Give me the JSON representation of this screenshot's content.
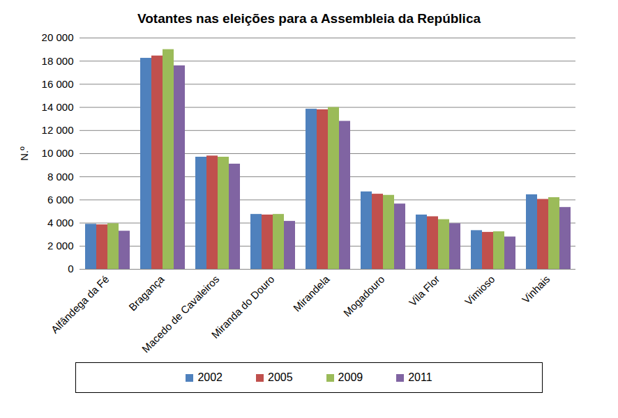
{
  "chart_data": {
    "type": "bar",
    "title": "Votantes nas eleições para a Assembleia da República",
    "y_label": "N.º",
    "categories": [
      "Alfândega da Fé",
      "Bragança",
      "Macedo de Cavaleiros",
      "Miranda do Douro",
      "Mirandela",
      "Mogadouro",
      "Vila Flor",
      "Vimioso",
      "Vinhais"
    ],
    "series": [
      {
        "name": "2002",
        "color": "#4f81bd",
        "values": [
          3900,
          18250,
          9700,
          4750,
          13850,
          6700,
          4700,
          3350,
          6450
        ]
      },
      {
        "name": "2005",
        "color": "#c0504d",
        "values": [
          3850,
          18450,
          9800,
          4700,
          13800,
          6500,
          4550,
          3200,
          6050
        ]
      },
      {
        "name": "2009",
        "color": "#9bbb59",
        "values": [
          3950,
          19000,
          9700,
          4750,
          14000,
          6400,
          4300,
          3250,
          6200
        ]
      },
      {
        "name": "2011",
        "color": "#8064a2",
        "values": [
          3300,
          17600,
          9100,
          4150,
          12800,
          5650,
          3950,
          2800,
          5350
        ]
      }
    ],
    "ylim": [
      0,
      20000
    ],
    "yticks": [
      0,
      {
        "value": 2000,
        "label": "2 000"
      },
      {
        "value": 4000,
        "label": "4 000"
      },
      {
        "value": 6000,
        "label": "6 000"
      },
      {
        "value": 8000,
        "label": "8 000"
      },
      {
        "value": 10000,
        "label": "10 000"
      },
      {
        "value": 12000,
        "label": "12 000"
      },
      {
        "value": 14000,
        "label": "14 000"
      },
      {
        "value": 16000,
        "label": "16 000"
      },
      {
        "value": 18000,
        "label": "18 000"
      },
      {
        "value": 20000,
        "label": "20 000"
      }
    ],
    "grid": true,
    "legend": "bottom"
  }
}
